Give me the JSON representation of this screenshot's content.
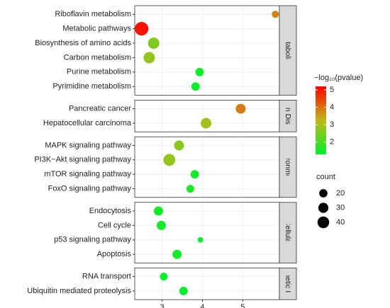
{
  "chart_data": {
    "type": "bubble",
    "xlim": [
      2.32,
      5.91
    ],
    "xticks": [
      3,
      4,
      5
    ],
    "grid": true,
    "color_legend": {
      "title": "−log₁₀(pvalue)",
      "lim": [
        1.3,
        5.2
      ],
      "ticks": [
        2,
        3,
        4,
        5
      ],
      "colors": [
        "#00f02a",
        "#c0b81a",
        "#ff0000"
      ]
    },
    "size_legend": {
      "title": "count",
      "values": [
        20,
        30,
        40
      ]
    },
    "panels": [
      {
        "label": "Metabolism",
        "categories": [
          "Riboflavin metabolism",
          "Metabolic pathways",
          "Biosynthesis of amino acids",
          "Carbon metabolism",
          "Purine metabolism",
          "Pyrimidine metabolism"
        ],
        "x": [
          5.81,
          2.49,
          2.79,
          2.68,
          3.93,
          3.83
        ],
        "count": [
          15,
          55,
          38,
          38,
          21,
          21
        ],
        "logp": [
          3.8,
          5.0,
          2.6,
          2.8,
          1.4,
          1.4
        ]
      },
      {
        "label": "nan Disea",
        "categories": [
          "Pancreatic cancer",
          "Hepatocellular carcinoma"
        ],
        "x": [
          4.95,
          4.09
        ],
        "count": [
          29,
          33
        ],
        "logp": [
          3.9,
          3.0
        ]
      },
      {
        "label": "Environmental",
        "categories": [
          "MAPK signaling pathway",
          "PI3K−Akt signaling pathway",
          "mTOR signaling pathway",
          "FoxO signaling pathway"
        ],
        "x": [
          3.42,
          3.18,
          3.81,
          3.7
        ],
        "count": [
          29,
          42,
          21,
          18
        ],
        "logp": [
          2.7,
          2.8,
          1.5,
          1.6
        ]
      },
      {
        "label": "Cellular",
        "categories": [
          "Endocytosis",
          "Cell cycle",
          "p53 signaling pathway",
          "Apoptosis"
        ],
        "x": [
          2.91,
          2.98,
          3.95,
          3.37
        ],
        "count": [
          25,
          25,
          9,
          25
        ],
        "logp": [
          1.5,
          1.5,
          1.3,
          1.5
        ]
      },
      {
        "label": "enetic Inf",
        "categories": [
          "RNA transport",
          "Ubiquitin mediated proteolysis"
        ],
        "x": [
          3.04,
          3.53
        ],
        "count": [
          18,
          21
        ],
        "logp": [
          1.3,
          1.4
        ]
      }
    ]
  }
}
